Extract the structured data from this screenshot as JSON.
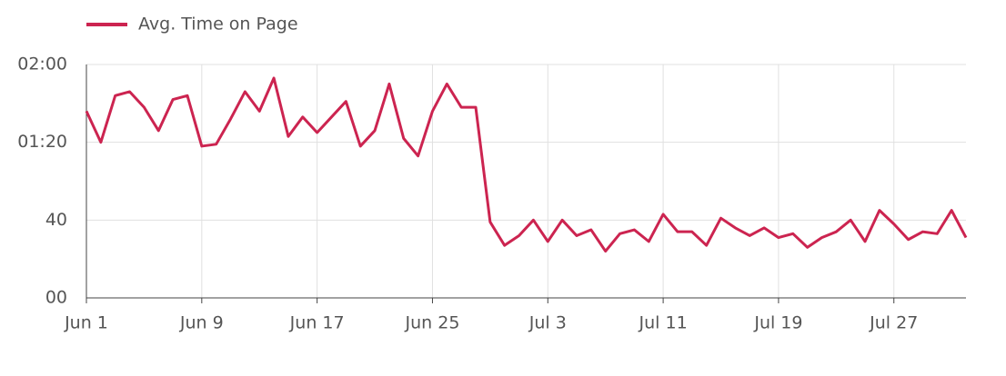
{
  "chart_data": {
    "type": "line",
    "categories": [
      "Jun 1",
      null,
      null,
      null,
      null,
      null,
      null,
      null,
      "Jun 9",
      null,
      null,
      null,
      null,
      null,
      null,
      null,
      "Jun 17",
      null,
      null,
      null,
      null,
      null,
      null,
      null,
      "Jun 25",
      null,
      null,
      null,
      null,
      null,
      null,
      null,
      "Jul 3",
      null,
      null,
      null,
      null,
      null,
      null,
      null,
      "Jul 11",
      null,
      null,
      null,
      null,
      null,
      null,
      null,
      "Jul 19",
      null,
      null,
      null,
      null,
      null,
      null,
      null,
      "Jul 27",
      null,
      null,
      null,
      null,
      null
    ],
    "series": [
      {
        "name": "Avg. Time on Page",
        "color": "#cc2450",
        "values": [
          96,
          80,
          104,
          106,
          98,
          86,
          102,
          104,
          78,
          79,
          92,
          106,
          96,
          113,
          83,
          93,
          85,
          93,
          101,
          78,
          86,
          110,
          82,
          73,
          96,
          110,
          98,
          98,
          39,
          27,
          32,
          40,
          29,
          40,
          32,
          35,
          24,
          33,
          35,
          29,
          43,
          34,
          34,
          27,
          41,
          36,
          32,
          36,
          31,
          33,
          26,
          31,
          34,
          40,
          29,
          45,
          38,
          30,
          34,
          33,
          45,
          31
        ]
      }
    ],
    "ylim": [
      0,
      120
    ],
    "yticks": [
      {
        "value": 0,
        "label": "00"
      },
      40,
      {
        "value": 80,
        "label": "01:20"
      },
      {
        "value": 120,
        "label": "02:00"
      }
    ],
    "grid": true,
    "legend": "top-left"
  }
}
